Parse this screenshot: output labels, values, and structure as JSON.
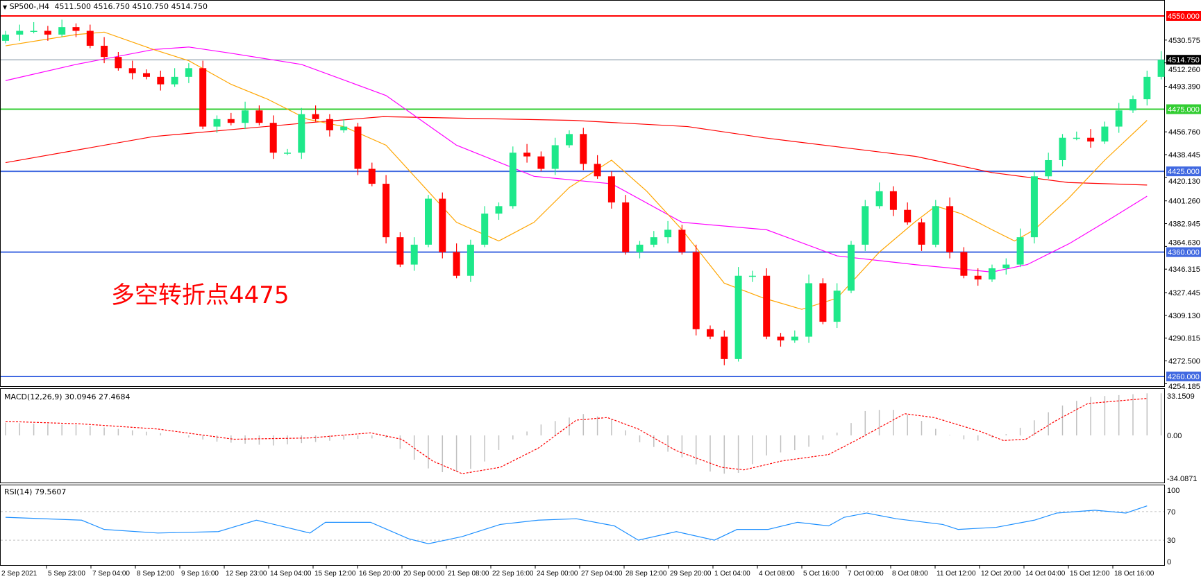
{
  "header": {
    "symbol": "SP500-,H4",
    "ohlc": "4511.500 4516.750 4510.750 4514.750"
  },
  "annotation": "多空转折点4475",
  "indicators": {
    "macd_label": "MACD(12,26,9) 30.0946 27.4684",
    "rsi_label": "RSI(14) 79.5607"
  },
  "colors": {
    "bull": "#1ee88a",
    "bear": "#ff0000",
    "ma_fast": "#ffa500",
    "ma_mid": "#ff00ff",
    "ma_slow": "#ff0000",
    "macd_hist": "#c0c0c0",
    "macd_signal": "#ff0000",
    "rsi": "#1e90ff"
  },
  "chart_data": {
    "type": "candlestick",
    "symbol": "SP500-",
    "timeframe": "H4",
    "current_price": 4514.75,
    "price_axis": {
      "range": [
        4254.185,
        4550
      ],
      "ticks": [
        "4530.575",
        "4512.260",
        "4493.390",
        "4456.760",
        "4438.445",
        "4420.130",
        "4401.260",
        "4382.945",
        "4364.630",
        "4346.315",
        "4327.445",
        "4309.130",
        "4290.815",
        "4272.500",
        "4254.185"
      ]
    },
    "levels": [
      {
        "price": 4550,
        "label": "4550.000",
        "color": "#ff0000"
      },
      {
        "price": 4514.75,
        "label": "4514.750",
        "color": "#000000",
        "line": "#778899"
      },
      {
        "price": 4475,
        "label": "4475.000",
        "color": "#32cd32"
      },
      {
        "price": 4425,
        "label": "4425.000",
        "color": "#4169e1"
      },
      {
        "price": 4360,
        "label": "4360.000",
        "color": "#4169e1"
      },
      {
        "price": 4260,
        "label": "4260.000",
        "color": "#4169e1"
      }
    ],
    "time_labels": [
      "2 Sep 2021",
      "5 Sep 23:00",
      "7 Sep 04:00",
      "8 Sep 12:00",
      "9 Sep 16:00",
      "12 Sep 23:00",
      "14 Sep 04:00",
      "15 Sep 12:00",
      "16 Sep 20:00",
      "20 Sep 00:00",
      "21 Sep 08:00",
      "22 Sep 16:00",
      "24 Sep 00:00",
      "27 Sep 04:00",
      "28 Sep 12:00",
      "29 Sep 20:00",
      "1 Oct 04:00",
      "4 Oct 08:00",
      "5 Oct 16:00",
      "7 Oct 00:00",
      "8 Oct 08:00",
      "11 Oct 12:00",
      "12 Oct 20:00",
      "14 Oct 04:00",
      "15 Oct 12:00",
      "18 Oct 16:00"
    ],
    "first_open": 4530,
    "closes": [
      4535,
      4538,
      4538,
      4535,
      4541,
      4538,
      4526,
      4517,
      4508,
      4504,
      4501,
      4495,
      4501,
      4508,
      4461,
      4467,
      4464,
      4474,
      4464,
      4440,
      4440,
      4471,
      4467,
      4458,
      4461,
      4427,
      4415,
      4372,
      4350,
      4366,
      4403,
      4360,
      4341,
      4366,
      4391,
      4397,
      4440,
      4437,
      4427,
      4446,
      4455,
      4431,
      4421,
      4400,
      4360,
      4366,
      4372,
      4378,
      4360,
      4298,
      4292,
      4274,
      4341,
      4341,
      4292,
      4289,
      4292,
      4335,
      4304,
      4329,
      4366,
      4397,
      4409,
      4394,
      4384,
      4366,
      4397,
      4360,
      4341,
      4338,
      4347,
      4350,
      4372,
      4421,
      4434,
      4452,
      4452,
      4449,
      4461,
      4474,
      4483,
      4501,
      4514.75
    ],
    "moving_averages": {
      "fast": [
        [
          0,
          4526
        ],
        [
          5,
          4535
        ],
        [
          7,
          4537
        ],
        [
          10.5,
          4523
        ],
        [
          13,
          4514
        ],
        [
          16,
          4495
        ],
        [
          18.6,
          4483
        ],
        [
          21.4,
          4467
        ],
        [
          24,
          4461
        ],
        [
          27,
          4446
        ],
        [
          29.5,
          4415
        ],
        [
          32,
          4384
        ],
        [
          35,
          4369
        ],
        [
          37.5,
          4384
        ],
        [
          40,
          4412
        ],
        [
          43,
          4434
        ],
        [
          45.5,
          4409
        ],
        [
          48,
          4378
        ],
        [
          51,
          4335
        ],
        [
          53.8,
          4323
        ],
        [
          56.5,
          4314
        ],
        [
          59,
          4323
        ],
        [
          62,
          4360
        ],
        [
          64.5,
          4384
        ],
        [
          66,
          4397
        ],
        [
          67.8,
          4391
        ],
        [
          70,
          4378
        ],
        [
          71.6,
          4369
        ],
        [
          73,
          4378
        ],
        [
          75.4,
          4403
        ],
        [
          78,
          4434
        ],
        [
          81,
          4466
        ]
      ],
      "mid": [
        [
          0,
          4498
        ],
        [
          5,
          4511
        ],
        [
          10.5,
          4523
        ],
        [
          13,
          4525
        ],
        [
          16,
          4520
        ],
        [
          21,
          4511
        ],
        [
          27,
          4486
        ],
        [
          32,
          4446
        ],
        [
          37.5,
          4421
        ],
        [
          43,
          4415
        ],
        [
          48,
          4384
        ],
        [
          54,
          4378
        ],
        [
          59,
          4357
        ],
        [
          64.5,
          4350
        ],
        [
          70,
          4344
        ],
        [
          72.5,
          4350
        ],
        [
          75.5,
          4367
        ],
        [
          78,
          4384
        ],
        [
          81,
          4405
        ]
      ],
      "slow": [
        [
          0,
          4432
        ],
        [
          10.5,
          4453
        ],
        [
          21.4,
          4464
        ],
        [
          26.8,
          4469
        ],
        [
          40.3,
          4466
        ],
        [
          48.4,
          4461
        ],
        [
          53.8,
          4452
        ],
        [
          64.6,
          4437
        ],
        [
          70,
          4424
        ],
        [
          75.4,
          4416
        ],
        [
          81,
          4414
        ]
      ]
    },
    "macd": {
      "range": [
        -34.0871,
        33.1509
      ],
      "ticks": [
        "33.1509",
        "0.00",
        "-34.0871"
      ],
      "histogram": [
        [
          0,
          10
        ],
        [
          5.4,
          8
        ],
        [
          10.8,
          2
        ],
        [
          15.1,
          -5
        ],
        [
          18.9,
          -8
        ],
        [
          24.3,
          -3
        ],
        [
          27,
          -2
        ],
        [
          29.7,
          -25
        ],
        [
          31.4,
          -30
        ],
        [
          33.5,
          -25
        ],
        [
          35.7,
          -5
        ],
        [
          37.8,
          8
        ],
        [
          41.1,
          17
        ],
        [
          43.2,
          12
        ],
        [
          44.9,
          -5
        ],
        [
          47.6,
          -15
        ],
        [
          50.3,
          -30
        ],
        [
          51.9,
          -30
        ],
        [
          54.1,
          -15
        ],
        [
          56.8,
          -10
        ],
        [
          59.5,
          5
        ],
        [
          61.1,
          20
        ],
        [
          63.2,
          20
        ],
        [
          64.9,
          12
        ],
        [
          66.5,
          2
        ],
        [
          68.6,
          -5
        ],
        [
          70.8,
          0
        ],
        [
          72.4,
          8
        ],
        [
          74.6,
          22
        ],
        [
          76.8,
          30
        ],
        [
          81,
          33
        ]
      ],
      "signal": [
        [
          0,
          11
        ],
        [
          5.4,
          9
        ],
        [
          10.8,
          5
        ],
        [
          16.2,
          -3
        ],
        [
          21.6,
          -2
        ],
        [
          25.9,
          2
        ],
        [
          28.1,
          -3
        ],
        [
          30.3,
          -20
        ],
        [
          32.4,
          -30
        ],
        [
          35.1,
          -25
        ],
        [
          37.8,
          -10
        ],
        [
          40.5,
          12
        ],
        [
          42.7,
          14
        ],
        [
          44.9,
          5
        ],
        [
          47.6,
          -12
        ],
        [
          50.8,
          -25
        ],
        [
          52.4,
          -27
        ],
        [
          55.1,
          -20
        ],
        [
          58.4,
          -15
        ],
        [
          60.5,
          -3
        ],
        [
          63.8,
          17
        ],
        [
          65.9,
          14
        ],
        [
          69.2,
          3
        ],
        [
          70.8,
          -4
        ],
        [
          72.4,
          -3
        ],
        [
          74.6,
          12
        ],
        [
          76.8,
          25
        ],
        [
          78.9,
          27
        ],
        [
          81,
          29
        ]
      ]
    },
    "rsi": {
      "range": [
        0,
        100
      ],
      "ticks": [
        "100",
        "70",
        "30",
        "0"
      ],
      "levels": [
        70,
        30
      ],
      "values": [
        [
          0,
          62
        ],
        [
          5.4,
          58
        ],
        [
          7,
          45
        ],
        [
          10.8,
          40
        ],
        [
          15.1,
          42
        ],
        [
          17.8,
          58
        ],
        [
          21.6,
          40
        ],
        [
          22.7,
          55
        ],
        [
          25.9,
          55
        ],
        [
          28.6,
          32
        ],
        [
          30,
          25
        ],
        [
          32.4,
          35
        ],
        [
          35.1,
          52
        ],
        [
          37.8,
          58
        ],
        [
          40.5,
          60
        ],
        [
          43.2,
          50
        ],
        [
          44.9,
          30
        ],
        [
          47.6,
          42
        ],
        [
          50.3,
          30
        ],
        [
          51.9,
          45
        ],
        [
          54.1,
          45
        ],
        [
          56.2,
          55
        ],
        [
          58.4,
          50
        ],
        [
          59.5,
          62
        ],
        [
          61.1,
          68
        ],
        [
          63.2,
          60
        ],
        [
          66.5,
          52
        ],
        [
          67.6,
          45
        ],
        [
          70.3,
          48
        ],
        [
          73,
          58
        ],
        [
          74.6,
          68
        ],
        [
          77.3,
          72
        ],
        [
          79.5,
          68
        ],
        [
          81,
          78
        ]
      ]
    }
  }
}
